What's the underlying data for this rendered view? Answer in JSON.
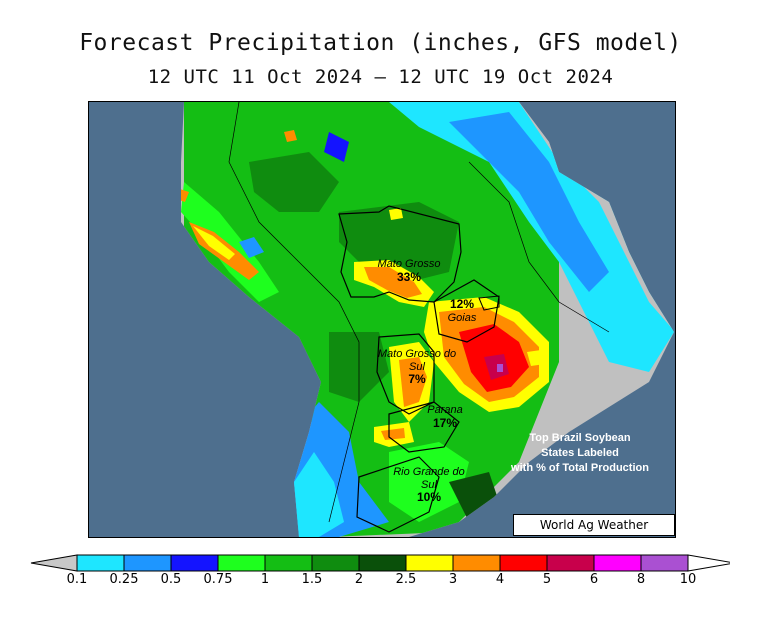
{
  "title": "Forecast Precipitation (inches, GFS model)",
  "subtitle": "12 UTC 11 Oct 2024 – 12 UTC 19 Oct 2024",
  "watermark": "World Ag Weather",
  "note": [
    "Top Brazil Soybean",
    "States Labeled",
    "with % of Total Production"
  ],
  "states": [
    {
      "name": "Mato Grosso",
      "pct": "33%"
    },
    {
      "name": "Goias",
      "pct": "12%"
    },
    {
      "name": "Mato Grosso do Sul",
      "pct": "7%"
    },
    {
      "name": "Parana",
      "pct": "17%"
    },
    {
      "name": "Rio Grande do Sul",
      "pct": "10%"
    }
  ],
  "legend": {
    "ticks": [
      "0.1",
      "0.25",
      "0.5",
      "0.75",
      "1",
      "1.5",
      "2",
      "2.5",
      "3",
      "4",
      "5",
      "6",
      "8",
      "10"
    ],
    "colors": {
      "below": "#c8c8c8",
      "bins": [
        "#1ee6ff",
        "#1e96ff",
        "#1414ff",
        "#1eff1e",
        "#14be14",
        "#0f8c0f",
        "#0a500a",
        "#ffff00",
        "#ff8c00",
        "#ff0000",
        "#c8004b",
        "#ff00ff",
        "#aa50d2"
      ],
      "above": "#ffffff"
    }
  },
  "map_colors": {
    "ocean": "#4e6f8e",
    "land_dry": "#c0c0c0"
  }
}
